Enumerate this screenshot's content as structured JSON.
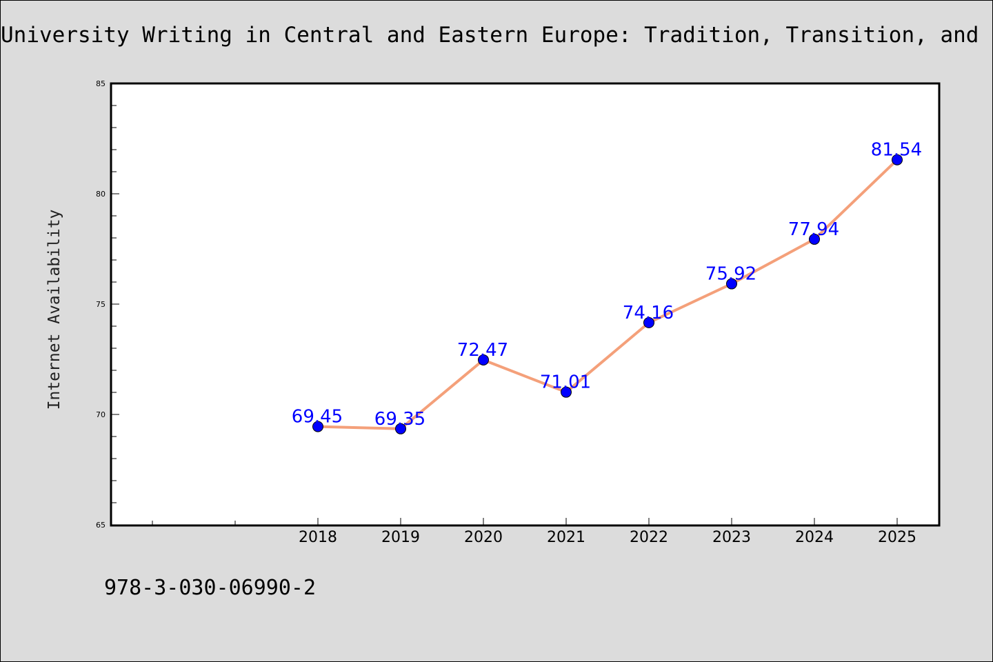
{
  "chart_data": {
    "type": "line",
    "title": "University Writing in Central and Eastern Europe: Tradition, Transition, and Inn",
    "ylabel": "Internet Availability",
    "xlabel": "",
    "x": [
      "2018",
      "2019",
      "2020",
      "2021",
      "2022",
      "2023",
      "2024",
      "2025"
    ],
    "values": [
      69.45,
      69.35,
      72.47,
      71.01,
      74.16,
      75.92,
      77.94,
      81.54
    ],
    "data_labels": [
      "69.45",
      "69.35",
      "72.47",
      "71.01",
      "74.16",
      "75.92",
      "77.94",
      "81.54"
    ],
    "ylim": [
      65,
      85
    ],
    "y_ticks": [
      "65",
      "70",
      "75",
      "80",
      "85"
    ],
    "grid": false,
    "line_color": "#f4a07a",
    "marker_color": "#0000ff",
    "label_color": "#0000ff"
  },
  "footer": {
    "isbn": "978-3-030-06990-2"
  }
}
